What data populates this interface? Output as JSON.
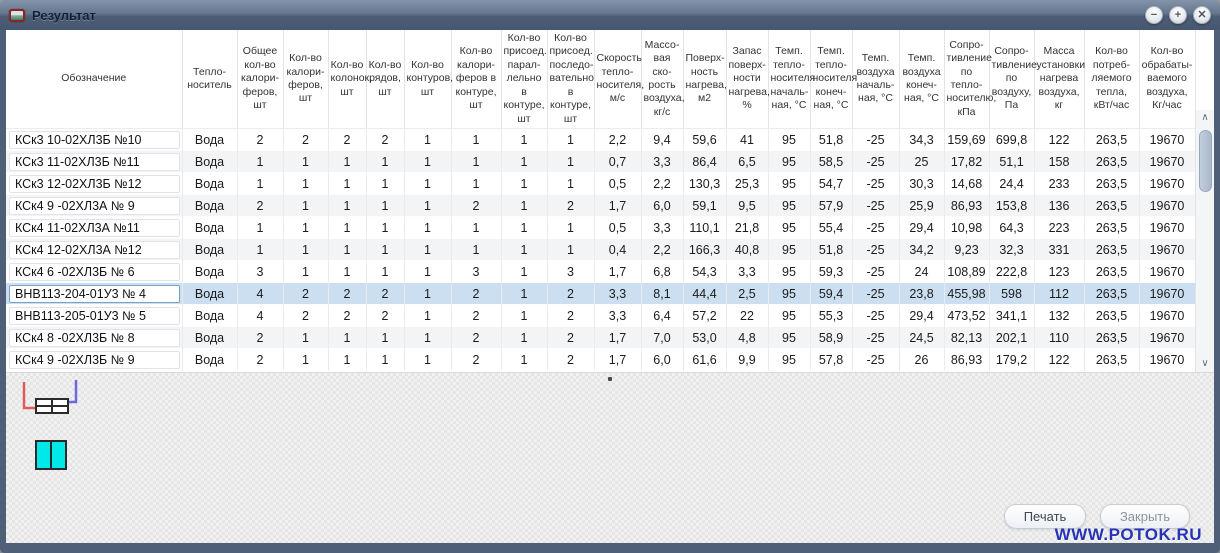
{
  "window": {
    "title": "Результат",
    "controls": {
      "minimize_label": "−",
      "maximize_label": "+",
      "close_label": "✕"
    }
  },
  "table": {
    "columns": [
      "Обозначение",
      "Тепло-носитель",
      "Общее кол-во калори-феров, шт",
      "Кол-во калори-феров, шт",
      "Кол-во колонок, шт",
      "Кол-во рядов, шт",
      "Кол-во контуров, шт",
      "Кол-во калори-феров в контуре, шт",
      "Кол-во присоед. парал-лельно в контуре, шт",
      "Кол-во присоед. последо-вательно в контуре, шт",
      "Скорость тепло-носителя, м/с",
      "Массо-вая ско-рость воздуха, кг/с",
      "Поверх-ность нагрева, м2",
      "Запас поверх-ности нагрева, %",
      "Темп. тепло-носителя началь-ная, °С",
      "Темп. тепло-носителя конеч-ная, °С",
      "Темп. воздуха началь-ная, °С",
      "Темп. воздуха конеч-ная, °С",
      "Сопро-тивление по тепло-носителю, кПа",
      "Сопро-тивление по воздуху, Па",
      "Масса установки нагрева воздуха, кг",
      "Кол-во потреб-ляемого тепла, кВт/час",
      "Кол-во обрабаты-ваемого воздуха, Кг/час"
    ],
    "rows": [
      [
        "КСк3 10-02ХЛ3Б №10",
        "Вода",
        "2",
        "2",
        "2",
        "2",
        "1",
        "1",
        "1",
        "1",
        "2,2",
        "9,4",
        "59,6",
        "41",
        "95",
        "51,8",
        "-25",
        "34,3",
        "159,69",
        "699,8",
        "122",
        "263,5",
        "19670"
      ],
      [
        "КСк3 11-02ХЛ3Б №11",
        "Вода",
        "1",
        "1",
        "1",
        "1",
        "1",
        "1",
        "1",
        "1",
        "0,7",
        "3,3",
        "86,4",
        "6,5",
        "95",
        "58,5",
        "-25",
        "25",
        "17,82",
        "51,1",
        "158",
        "263,5",
        "19670"
      ],
      [
        "КСк3 12-02ХЛ3Б №12",
        "Вода",
        "1",
        "1",
        "1",
        "1",
        "1",
        "1",
        "1",
        "1",
        "0,5",
        "2,2",
        "130,3",
        "25,3",
        "95",
        "54,7",
        "-25",
        "30,3",
        "14,68",
        "24,4",
        "233",
        "263,5",
        "19670"
      ],
      [
        "КСк4 9 -02ХЛ3А № 9",
        "Вода",
        "2",
        "1",
        "1",
        "1",
        "1",
        "2",
        "1",
        "2",
        "1,7",
        "6,0",
        "59,1",
        "9,5",
        "95",
        "57,9",
        "-25",
        "25,9",
        "86,93",
        "153,8",
        "136",
        "263,5",
        "19670"
      ],
      [
        "КСк4 11-02ХЛ3А №11",
        "Вода",
        "1",
        "1",
        "1",
        "1",
        "1",
        "1",
        "1",
        "1",
        "0,5",
        "3,3",
        "110,1",
        "21,8",
        "95",
        "55,4",
        "-25",
        "29,4",
        "10,98",
        "64,3",
        "223",
        "263,5",
        "19670"
      ],
      [
        "КСк4 12-02ХЛ3А №12",
        "Вода",
        "1",
        "1",
        "1",
        "1",
        "1",
        "1",
        "1",
        "1",
        "0,4",
        "2,2",
        "166,3",
        "40,8",
        "95",
        "51,8",
        "-25",
        "34,2",
        "9,23",
        "32,3",
        "331",
        "263,5",
        "19670"
      ],
      [
        "КСк4 6 -02ХЛ3Б № 6",
        "Вода",
        "3",
        "1",
        "1",
        "1",
        "1",
        "3",
        "1",
        "3",
        "1,7",
        "6,8",
        "54,3",
        "3,3",
        "95",
        "59,3",
        "-25",
        "24",
        "108,89",
        "222,8",
        "123",
        "263,5",
        "19670"
      ],
      [
        "ВНВ113-204-01У3 № 4",
        "Вода",
        "4",
        "2",
        "2",
        "2",
        "1",
        "2",
        "1",
        "2",
        "3,3",
        "8,1",
        "44,4",
        "2,5",
        "95",
        "59,4",
        "-25",
        "23,8",
        "455,98",
        "598",
        "112",
        "263,5",
        "19670"
      ],
      [
        "ВНВ113-205-01У3 № 5",
        "Вода",
        "4",
        "2",
        "2",
        "2",
        "1",
        "2",
        "1",
        "2",
        "3,3",
        "6,4",
        "57,2",
        "22",
        "95",
        "55,3",
        "-25",
        "29,4",
        "473,52",
        "341,1",
        "132",
        "263,5",
        "19670"
      ],
      [
        "КСк4 8 -02ХЛ3Б № 8",
        "Вода",
        "2",
        "1",
        "1",
        "1",
        "1",
        "2",
        "1",
        "2",
        "1,7",
        "7,0",
        "53,0",
        "4,8",
        "95",
        "58,9",
        "-25",
        "24,5",
        "82,13",
        "202,1",
        "110",
        "263,5",
        "19670"
      ],
      [
        "КСк4 9 -02ХЛ3Б № 9",
        "Вода",
        "2",
        "1",
        "1",
        "1",
        "1",
        "2",
        "1",
        "2",
        "1,7",
        "6,0",
        "61,6",
        "9,9",
        "95",
        "57,8",
        "-25",
        "26",
        "86,93",
        "179,2",
        "122",
        "263,5",
        "19670"
      ]
    ],
    "selected_row_index": 7
  },
  "scrollbar": {
    "up_glyph": "∧",
    "down_glyph": "∨"
  },
  "schematic": {
    "supply_pipe_color": "#e05a5a",
    "return_pipe_color": "#6a6ad8",
    "heater_outline_color": "#2a2a2a",
    "air_heater_fill_color": "#00e8e8"
  },
  "footer": {
    "print_button": "Печать",
    "close_button": "Закрыть",
    "watermark": "WWW.POTOK.RU"
  }
}
